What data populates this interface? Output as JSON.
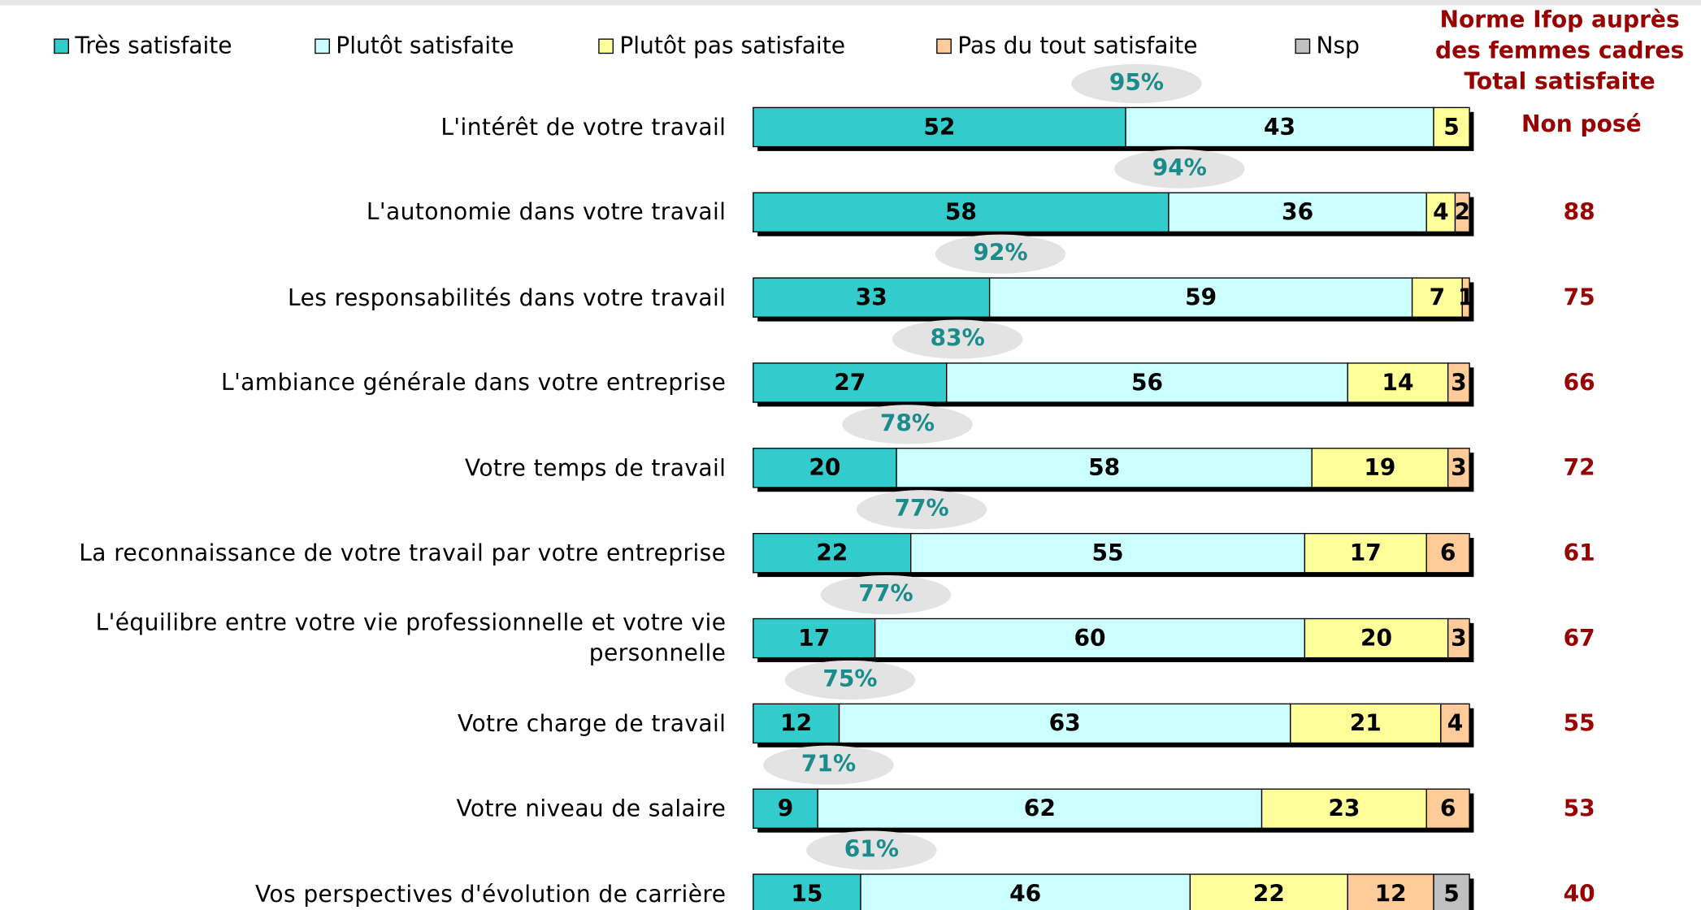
{
  "chart_data": {
    "type": "stacked-bar-horizontal",
    "categories": [
      "L'intérêt de votre travail",
      "L'autonomie dans votre travail",
      "Les responsabilités dans votre travail",
      "L'ambiance générale dans votre entreprise",
      "Votre temps de travail",
      "La reconnaissance de votre travail par votre entreprise",
      "L'équilibre entre votre vie professionnelle et votre vie personnelle",
      "Votre charge de travail",
      "Votre niveau de salaire",
      "Vos perspectives d'évolution de carrière"
    ],
    "series": [
      {
        "name": "Très satisfaite",
        "color": "#33cccc",
        "values": [
          52,
          58,
          33,
          27,
          20,
          22,
          17,
          12,
          9,
          15
        ]
      },
      {
        "name": "Plutôt satisfaite",
        "color": "#ccffff",
        "values": [
          43,
          36,
          59,
          56,
          58,
          55,
          60,
          63,
          62,
          46
        ]
      },
      {
        "name": "Plutôt pas satisfaite",
        "color": "#ffff99",
        "values": [
          5,
          4,
          7,
          14,
          19,
          17,
          20,
          21,
          23,
          22
        ]
      },
      {
        "name": "Pas du tout satisfaite",
        "color": "#ffcc99",
        "values": [
          null,
          2,
          1,
          3,
          3,
          6,
          3,
          4,
          6,
          12
        ]
      },
      {
        "name": "Nsp",
        "color": "#c0c0c0",
        "values": [
          null,
          null,
          null,
          null,
          null,
          null,
          null,
          null,
          null,
          5
        ]
      }
    ],
    "xlim": [
      0,
      100
    ],
    "totals": {
      "values": [
        95,
        94,
        92,
        83,
        78,
        77,
        77,
        75,
        71,
        61
      ],
      "value_labels": [
        "95%",
        "94%",
        "92%",
        "83%",
        "78%",
        "77%",
        "77%",
        "75%",
        "71%",
        "61%"
      ]
    },
    "norm": {
      "title": [
        "Norme Ifop auprès",
        "des femmes cadres",
        "Total satisfaite"
      ],
      "values": [
        null,
        88,
        75,
        66,
        72,
        61,
        67,
        55,
        53,
        40
      ],
      "value_labels": [
        "Non posé",
        "88",
        "75",
        "66",
        "72",
        "61",
        "67",
        "55",
        "53",
        "40"
      ]
    },
    "legend": "top"
  }
}
